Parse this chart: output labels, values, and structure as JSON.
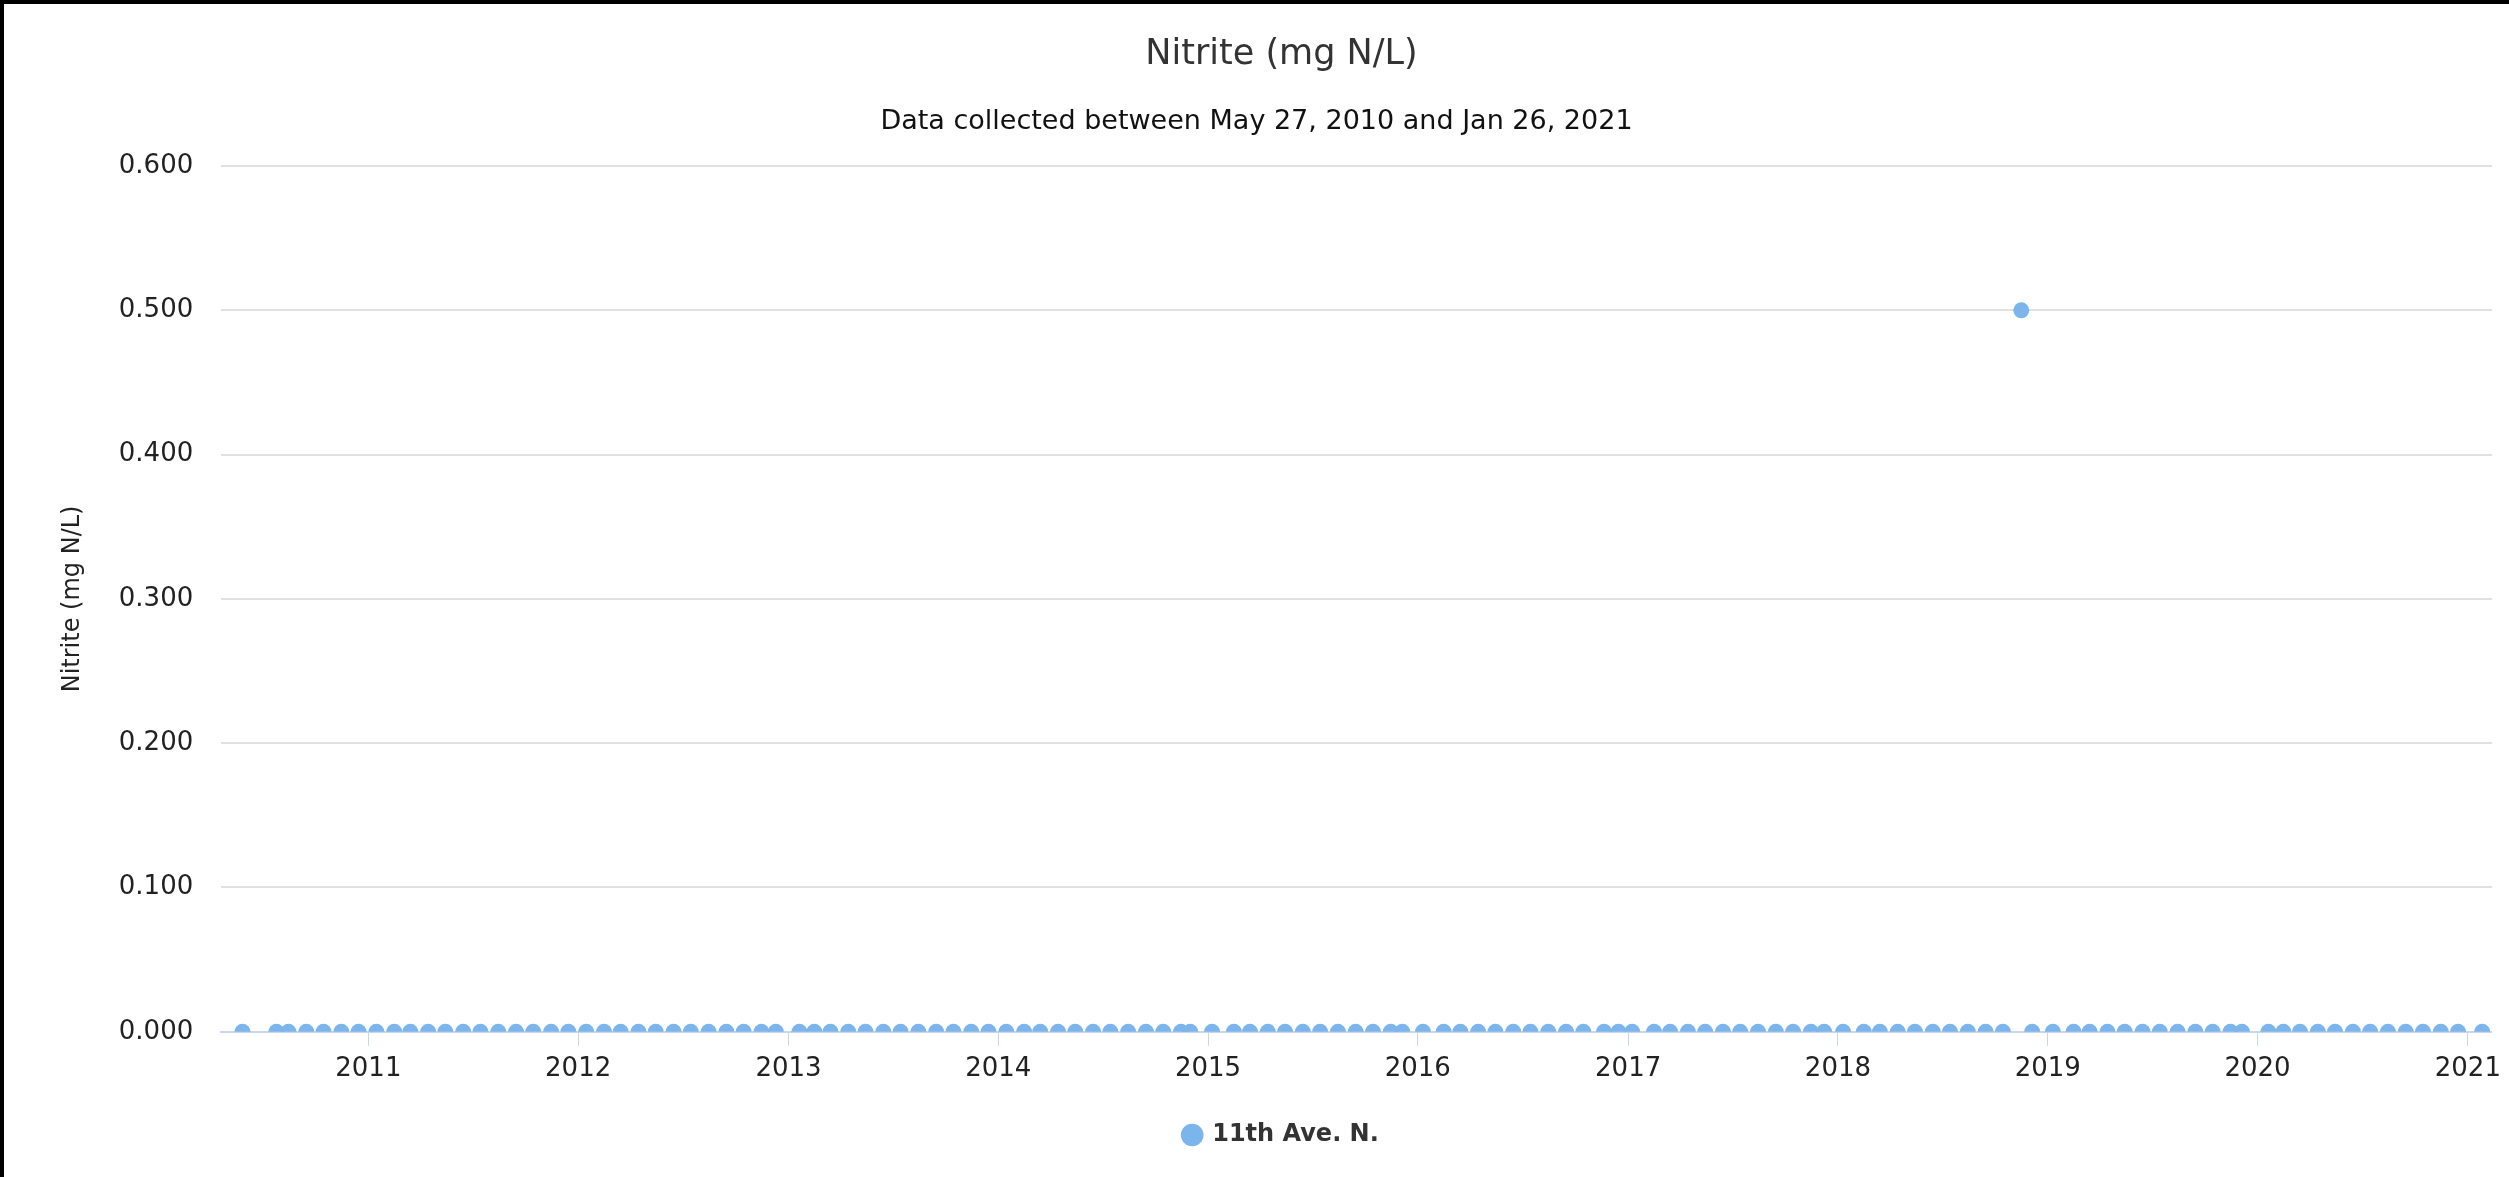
{
  "chart_data": {
    "type": "scatter",
    "title": "Nitrite (mg N/L)",
    "subtitle": "Data collected between May 27, 2010 and Jan 26, 2021",
    "ylabel": "Nitrite (mg N/L)",
    "xlim": [
      "2010-04-20",
      "2021-02-12"
    ],
    "xticks": [
      "2011",
      "2012",
      "2013",
      "2014",
      "2015",
      "2016",
      "2017",
      "2018",
      "2019",
      "2020",
      "2021"
    ],
    "ylim": [
      0,
      0.6
    ],
    "yticks": [
      {
        "value": 0,
        "label": "0.000"
      },
      {
        "value": 0.1,
        "label": "0.100"
      },
      {
        "value": 0.2,
        "label": "0.200"
      },
      {
        "value": 0.3,
        "label": "0.300"
      },
      {
        "value": 0.4,
        "label": "0.400"
      },
      {
        "value": 0.5,
        "label": "0.500"
      },
      {
        "value": 0.6,
        "label": "0.600"
      }
    ],
    "grid": "y",
    "legend": "bottom",
    "marker": "circle",
    "x": [
      "2010-05-27",
      "2010-07-25",
      "2010-08-15",
      "2010-09-15",
      "2010-10-15",
      "2010-11-15",
      "2010-12-15",
      "2011-01-15",
      "2011-02-15",
      "2011-03-15",
      "2011-04-15",
      "2011-05-15",
      "2011-06-15",
      "2011-07-15",
      "2011-08-15",
      "2011-09-15",
      "2011-10-15",
      "2011-11-15",
      "2011-12-15",
      "2012-01-15",
      "2012-02-15",
      "2012-03-15",
      "2012-04-15",
      "2012-05-15",
      "2012-06-15",
      "2012-07-15",
      "2012-08-15",
      "2012-09-15",
      "2012-10-15",
      "2012-11-15",
      "2012-12-10",
      "2013-01-20",
      "2013-02-15",
      "2013-03-15",
      "2013-04-15",
      "2013-05-15",
      "2013-06-15",
      "2013-07-15",
      "2013-08-15",
      "2013-09-15",
      "2013-10-15",
      "2013-11-15",
      "2013-12-15",
      "2014-01-15",
      "2014-02-15",
      "2014-03-15",
      "2014-04-15",
      "2014-05-15",
      "2014-06-15",
      "2014-07-15",
      "2014-08-15",
      "2014-09-15",
      "2014-10-15",
      "2014-11-15",
      "2014-12-01",
      "2015-01-08",
      "2015-02-15",
      "2015-03-15",
      "2015-04-15",
      "2015-05-15",
      "2015-06-15",
      "2015-07-15",
      "2015-08-15",
      "2015-09-15",
      "2015-10-15",
      "2015-11-15",
      "2015-12-05",
      "2016-01-10",
      "2016-02-15",
      "2016-03-15",
      "2016-04-15",
      "2016-05-15",
      "2016-06-15",
      "2016-07-15",
      "2016-08-15",
      "2016-09-15",
      "2016-10-15",
      "2016-11-20",
      "2016-12-15",
      "2017-01-08",
      "2017-02-15",
      "2017-03-15",
      "2017-04-15",
      "2017-05-15",
      "2017-06-15",
      "2017-07-15",
      "2017-08-15",
      "2017-09-15",
      "2017-10-15",
      "2017-11-15",
      "2017-12-08",
      "2018-01-10",
      "2018-02-15",
      "2018-03-15",
      "2018-04-15",
      "2018-05-15",
      "2018-06-15",
      "2018-07-15",
      "2018-08-15",
      "2018-09-15",
      "2018-10-15",
      "2018-11-16",
      "2018-12-05",
      "2019-01-10",
      "2019-02-15",
      "2019-03-15",
      "2019-04-15",
      "2019-05-15",
      "2019-06-15",
      "2019-07-15",
      "2019-08-15",
      "2019-09-15",
      "2019-10-15",
      "2019-11-15",
      "2019-12-05",
      "2020-01-20",
      "2020-02-15",
      "2020-03-15",
      "2020-04-15",
      "2020-05-15",
      "2020-06-15",
      "2020-07-15",
      "2020-08-15",
      "2020-09-15",
      "2020-10-15",
      "2020-11-15",
      "2020-12-15",
      "2021-01-26"
    ],
    "series": [
      {
        "name": "11th Ave. N.",
        "color": "#7cb5ec",
        "values": [
          0,
          0,
          0,
          0,
          0,
          0,
          0,
          0,
          0,
          0,
          0,
          0,
          0,
          0,
          0,
          0,
          0,
          0,
          0,
          0,
          0,
          0,
          0,
          0,
          0,
          0,
          0,
          0,
          0,
          0,
          0,
          0,
          0,
          0,
          0,
          0,
          0,
          0,
          0,
          0,
          0,
          0,
          0,
          0,
          0,
          0,
          0,
          0,
          0,
          0,
          0,
          0,
          0,
          0,
          0,
          0,
          0,
          0,
          0,
          0,
          0,
          0,
          0,
          0,
          0,
          0,
          0,
          0,
          0,
          0,
          0,
          0,
          0,
          0,
          0,
          0,
          0,
          0,
          0,
          0,
          0,
          0,
          0,
          0,
          0,
          0,
          0,
          0,
          0,
          0,
          0,
          0,
          0,
          0,
          0,
          0,
          0,
          0,
          0,
          0,
          0,
          0.5,
          0,
          0,
          0,
          0,
          0,
          0,
          0,
          0,
          0,
          0,
          0,
          0,
          0,
          0,
          0,
          0,
          0,
          0,
          0,
          0,
          0,
          0,
          0,
          0,
          0,
          0
        ]
      }
    ]
  }
}
